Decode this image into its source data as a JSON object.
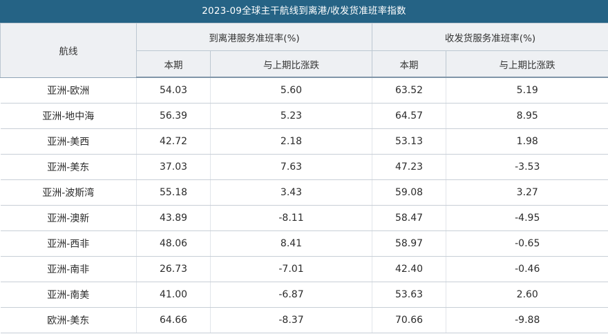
{
  "title": "2023-09全球主干航线到离港/收发货准班率指数",
  "header": {
    "route_label": "航线",
    "group1_label": "到离港服务准班率(%)",
    "group2_label": "收发货服务准班率(%)",
    "current_label": "本期",
    "change_label": "与上期比涨跌"
  },
  "rows": [
    {
      "route": "亚洲-欧洲",
      "port_current": "54.03",
      "port_change": "5.60",
      "cargo_current": "63.52",
      "cargo_change": "5.19"
    },
    {
      "route": "亚洲-地中海",
      "port_current": "56.39",
      "port_change": "5.23",
      "cargo_current": "64.57",
      "cargo_change": "8.95"
    },
    {
      "route": "亚洲-美西",
      "port_current": "42.72",
      "port_change": "2.18",
      "cargo_current": "53.13",
      "cargo_change": "1.98"
    },
    {
      "route": "亚洲-美东",
      "port_current": "37.03",
      "port_change": "7.63",
      "cargo_current": "47.23",
      "cargo_change": "-3.53"
    },
    {
      "route": "亚洲-波斯湾",
      "port_current": "55.18",
      "port_change": "3.43",
      "cargo_current": "59.08",
      "cargo_change": "3.27"
    },
    {
      "route": "亚洲-澳新",
      "port_current": "43.89",
      "port_change": "-8.11",
      "cargo_current": "58.47",
      "cargo_change": "-4.95"
    },
    {
      "route": "亚洲-西非",
      "port_current": "48.06",
      "port_change": "8.41",
      "cargo_current": "58.97",
      "cargo_change": "-0.65"
    },
    {
      "route": "亚洲-南非",
      "port_current": "26.73",
      "port_change": "-7.01",
      "cargo_current": "42.40",
      "cargo_change": "-0.46"
    },
    {
      "route": "亚洲-南美",
      "port_current": "41.00",
      "port_change": "-6.87",
      "cargo_current": "53.63",
      "cargo_change": "2.60"
    },
    {
      "route": "欧洲-美东",
      "port_current": "64.66",
      "port_change": "-8.37",
      "cargo_current": "70.66",
      "cargo_change": "-9.88"
    }
  ]
}
